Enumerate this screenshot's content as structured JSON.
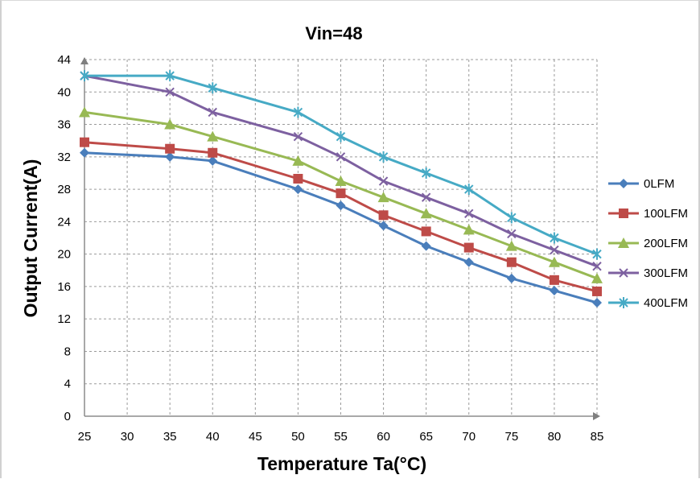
{
  "chart_data": {
    "type": "line",
    "title": "Vin=48",
    "xlabel": "Temperature Ta(°C)",
    "ylabel": "Output Current(A)",
    "x_ticks": [
      25,
      30,
      35,
      40,
      45,
      50,
      55,
      60,
      65,
      70,
      75,
      80,
      85
    ],
    "y_ticks": [
      0,
      4,
      8,
      12,
      16,
      20,
      24,
      28,
      32,
      36,
      40,
      44
    ],
    "xlim": [
      25,
      85
    ],
    "ylim": [
      0,
      44
    ],
    "grid": true,
    "legend_position": "right",
    "x": [
      25,
      35,
      40,
      50,
      55,
      60,
      65,
      70,
      75,
      80,
      85
    ],
    "series": [
      {
        "name": "0LFM",
        "color": "#4a7ebb",
        "marker": "diamond",
        "values": [
          32.5,
          32,
          31.5,
          28,
          26,
          23.5,
          21,
          19,
          17,
          15.5,
          14
        ]
      },
      {
        "name": "100LFM",
        "color": "#be4b48",
        "marker": "square",
        "values": [
          33.8,
          33,
          32.5,
          29.3,
          27.5,
          24.8,
          22.8,
          20.8,
          19,
          16.8,
          15.4
        ]
      },
      {
        "name": "200LFM",
        "color": "#98b954",
        "marker": "triangle",
        "values": [
          37.5,
          36,
          34.5,
          31.5,
          29,
          27,
          25,
          23,
          21,
          19,
          17
        ]
      },
      {
        "name": "300LFM",
        "color": "#7d60a0",
        "marker": "x",
        "values": [
          42,
          40,
          37.5,
          34.5,
          32,
          29,
          27,
          25,
          22.5,
          20.5,
          18.5
        ]
      },
      {
        "name": "400LFM",
        "color": "#46aac5",
        "marker": "star",
        "values": [
          42,
          42,
          40.5,
          37.5,
          34.5,
          32,
          30,
          28,
          24.5,
          22,
          20
        ]
      }
    ]
  }
}
